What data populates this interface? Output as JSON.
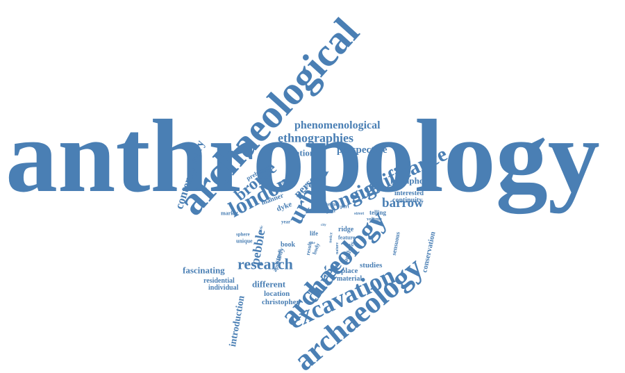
{
  "color": "#4a7fb4",
  "words": [
    {
      "id": "anthropology",
      "text": "anthropology"
    },
    {
      "id": "archaeological",
      "text": "archaeological"
    },
    {
      "id": "archaeology-upper",
      "text": "archaeology"
    },
    {
      "id": "archaeology-lower",
      "text": "archaeology"
    },
    {
      "id": "excavation",
      "text": "excavation"
    },
    {
      "id": "significance",
      "text": "significance"
    },
    {
      "id": "longue",
      "text": "longue"
    },
    {
      "id": "urban",
      "text": "urban"
    },
    {
      "id": "london",
      "text": "london"
    },
    {
      "id": "bronze",
      "text": "bronze"
    },
    {
      "id": "duree",
      "text": "durée"
    },
    {
      "id": "research",
      "text": "research"
    },
    {
      "id": "phenomenological",
      "text": "phenomenological"
    },
    {
      "id": "ethnographies",
      "text": "ethnographies"
    },
    {
      "id": "perspective",
      "text": "perspective"
    },
    {
      "id": "relation",
      "text": "relation"
    },
    {
      "id": "contemporary",
      "text": "contemporary"
    },
    {
      "id": "barrow",
      "text": "barrow"
    },
    {
      "id": "person",
      "text": "person"
    },
    {
      "id": "metaphor",
      "text": "metaphor"
    },
    {
      "id": "interested",
      "text": "interested"
    },
    {
      "id": "continuity",
      "text": "continuity"
    },
    {
      "id": "conservation",
      "text": "conservation"
    },
    {
      "id": "pebble",
      "text": "pebble"
    },
    {
      "id": "introduction",
      "text": "introduction"
    },
    {
      "id": "fascinating",
      "text": "fascinating"
    },
    {
      "id": "residential",
      "text": "residential"
    },
    {
      "id": "individual",
      "text": "individual"
    },
    {
      "id": "different",
      "text": "different"
    },
    {
      "id": "location",
      "text": "location"
    },
    {
      "id": "christopher",
      "text": "christopher"
    },
    {
      "id": "studies",
      "text": "studies"
    },
    {
      "id": "place",
      "text": "place"
    },
    {
      "id": "material",
      "text": "material"
    },
    {
      "id": "telling",
      "text": "telling"
    },
    {
      "id": "volume",
      "text": "volume"
    },
    {
      "id": "prehistoric",
      "text": "prehistoric"
    },
    {
      "id": "england",
      "text": "england"
    },
    {
      "id": "manner",
      "text": "manner"
    },
    {
      "id": "dyke",
      "text": "dyke"
    },
    {
      "id": "market",
      "text": "market"
    },
    {
      "id": "sphere",
      "text": "sphere"
    },
    {
      "id": "unique",
      "text": "unique"
    },
    {
      "id": "book",
      "text": "book"
    },
    {
      "id": "year",
      "text": "year"
    },
    {
      "id": "life",
      "text": "life"
    },
    {
      "id": "theme",
      "text": "theme"
    },
    {
      "id": "mind",
      "text": "mind"
    },
    {
      "id": "ridge",
      "text": "ridge"
    },
    {
      "id": "feature",
      "text": "feature"
    },
    {
      "id": "part",
      "text": "part"
    },
    {
      "id": "street",
      "text": "street"
    },
    {
      "id": "result",
      "text": "result"
    },
    {
      "id": "analysis",
      "text": "analysis"
    },
    {
      "id": "study",
      "text": "study"
    },
    {
      "id": "sensuous",
      "text": "sensuous"
    },
    {
      "id": "history",
      "text": "history"
    },
    {
      "id": "appeal",
      "text": "appeal"
    },
    {
      "id": "body",
      "text": "body"
    },
    {
      "id": "notice",
      "text": "notice"
    },
    {
      "id": "good",
      "text": "good"
    },
    {
      "id": "nature",
      "text": "nature"
    },
    {
      "id": "like",
      "text": "like"
    },
    {
      "id": "city",
      "text": "city"
    },
    {
      "id": "public",
      "text": "public"
    }
  ]
}
